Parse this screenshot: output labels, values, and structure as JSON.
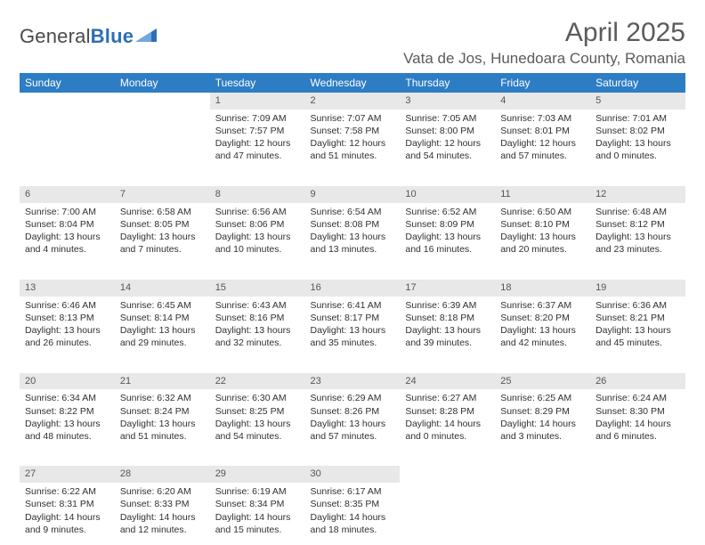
{
  "logo": {
    "word1": "General",
    "word2": "Blue"
  },
  "title": "April 2025",
  "location": "Vata de Jos, Hunedoara County, Romania",
  "colors": {
    "header_bg": "#2d7dc4",
    "header_fg": "#ffffff",
    "daynum_bg": "#e8e8e8",
    "daynum_fg": "#555555",
    "text": "#303030",
    "title_color": "#5b5b5b",
    "logo_blue": "#2d6fb5"
  },
  "day_names": [
    "Sunday",
    "Monday",
    "Tuesday",
    "Wednesday",
    "Thursday",
    "Friday",
    "Saturday"
  ],
  "weeks": [
    [
      {
        "n": "",
        "sr": "",
        "ss": "",
        "dl": ""
      },
      {
        "n": "",
        "sr": "",
        "ss": "",
        "dl": ""
      },
      {
        "n": "1",
        "sr": "Sunrise: 7:09 AM",
        "ss": "Sunset: 7:57 PM",
        "dl": "Daylight: 12 hours and 47 minutes."
      },
      {
        "n": "2",
        "sr": "Sunrise: 7:07 AM",
        "ss": "Sunset: 7:58 PM",
        "dl": "Daylight: 12 hours and 51 minutes."
      },
      {
        "n": "3",
        "sr": "Sunrise: 7:05 AM",
        "ss": "Sunset: 8:00 PM",
        "dl": "Daylight: 12 hours and 54 minutes."
      },
      {
        "n": "4",
        "sr": "Sunrise: 7:03 AM",
        "ss": "Sunset: 8:01 PM",
        "dl": "Daylight: 12 hours and 57 minutes."
      },
      {
        "n": "5",
        "sr": "Sunrise: 7:01 AM",
        "ss": "Sunset: 8:02 PM",
        "dl": "Daylight: 13 hours and 0 minutes."
      }
    ],
    [
      {
        "n": "6",
        "sr": "Sunrise: 7:00 AM",
        "ss": "Sunset: 8:04 PM",
        "dl": "Daylight: 13 hours and 4 minutes."
      },
      {
        "n": "7",
        "sr": "Sunrise: 6:58 AM",
        "ss": "Sunset: 8:05 PM",
        "dl": "Daylight: 13 hours and 7 minutes."
      },
      {
        "n": "8",
        "sr": "Sunrise: 6:56 AM",
        "ss": "Sunset: 8:06 PM",
        "dl": "Daylight: 13 hours and 10 minutes."
      },
      {
        "n": "9",
        "sr": "Sunrise: 6:54 AM",
        "ss": "Sunset: 8:08 PM",
        "dl": "Daylight: 13 hours and 13 minutes."
      },
      {
        "n": "10",
        "sr": "Sunrise: 6:52 AM",
        "ss": "Sunset: 8:09 PM",
        "dl": "Daylight: 13 hours and 16 minutes."
      },
      {
        "n": "11",
        "sr": "Sunrise: 6:50 AM",
        "ss": "Sunset: 8:10 PM",
        "dl": "Daylight: 13 hours and 20 minutes."
      },
      {
        "n": "12",
        "sr": "Sunrise: 6:48 AM",
        "ss": "Sunset: 8:12 PM",
        "dl": "Daylight: 13 hours and 23 minutes."
      }
    ],
    [
      {
        "n": "13",
        "sr": "Sunrise: 6:46 AM",
        "ss": "Sunset: 8:13 PM",
        "dl": "Daylight: 13 hours and 26 minutes."
      },
      {
        "n": "14",
        "sr": "Sunrise: 6:45 AM",
        "ss": "Sunset: 8:14 PM",
        "dl": "Daylight: 13 hours and 29 minutes."
      },
      {
        "n": "15",
        "sr": "Sunrise: 6:43 AM",
        "ss": "Sunset: 8:16 PM",
        "dl": "Daylight: 13 hours and 32 minutes."
      },
      {
        "n": "16",
        "sr": "Sunrise: 6:41 AM",
        "ss": "Sunset: 8:17 PM",
        "dl": "Daylight: 13 hours and 35 minutes."
      },
      {
        "n": "17",
        "sr": "Sunrise: 6:39 AM",
        "ss": "Sunset: 8:18 PM",
        "dl": "Daylight: 13 hours and 39 minutes."
      },
      {
        "n": "18",
        "sr": "Sunrise: 6:37 AM",
        "ss": "Sunset: 8:20 PM",
        "dl": "Daylight: 13 hours and 42 minutes."
      },
      {
        "n": "19",
        "sr": "Sunrise: 6:36 AM",
        "ss": "Sunset: 8:21 PM",
        "dl": "Daylight: 13 hours and 45 minutes."
      }
    ],
    [
      {
        "n": "20",
        "sr": "Sunrise: 6:34 AM",
        "ss": "Sunset: 8:22 PM",
        "dl": "Daylight: 13 hours and 48 minutes."
      },
      {
        "n": "21",
        "sr": "Sunrise: 6:32 AM",
        "ss": "Sunset: 8:24 PM",
        "dl": "Daylight: 13 hours and 51 minutes."
      },
      {
        "n": "22",
        "sr": "Sunrise: 6:30 AM",
        "ss": "Sunset: 8:25 PM",
        "dl": "Daylight: 13 hours and 54 minutes."
      },
      {
        "n": "23",
        "sr": "Sunrise: 6:29 AM",
        "ss": "Sunset: 8:26 PM",
        "dl": "Daylight: 13 hours and 57 minutes."
      },
      {
        "n": "24",
        "sr": "Sunrise: 6:27 AM",
        "ss": "Sunset: 8:28 PM",
        "dl": "Daylight: 14 hours and 0 minutes."
      },
      {
        "n": "25",
        "sr": "Sunrise: 6:25 AM",
        "ss": "Sunset: 8:29 PM",
        "dl": "Daylight: 14 hours and 3 minutes."
      },
      {
        "n": "26",
        "sr": "Sunrise: 6:24 AM",
        "ss": "Sunset: 8:30 PM",
        "dl": "Daylight: 14 hours and 6 minutes."
      }
    ],
    [
      {
        "n": "27",
        "sr": "Sunrise: 6:22 AM",
        "ss": "Sunset: 8:31 PM",
        "dl": "Daylight: 14 hours and 9 minutes."
      },
      {
        "n": "28",
        "sr": "Sunrise: 6:20 AM",
        "ss": "Sunset: 8:33 PM",
        "dl": "Daylight: 14 hours and 12 minutes."
      },
      {
        "n": "29",
        "sr": "Sunrise: 6:19 AM",
        "ss": "Sunset: 8:34 PM",
        "dl": "Daylight: 14 hours and 15 minutes."
      },
      {
        "n": "30",
        "sr": "Sunrise: 6:17 AM",
        "ss": "Sunset: 8:35 PM",
        "dl": "Daylight: 14 hours and 18 minutes."
      },
      {
        "n": "",
        "sr": "",
        "ss": "",
        "dl": ""
      },
      {
        "n": "",
        "sr": "",
        "ss": "",
        "dl": ""
      },
      {
        "n": "",
        "sr": "",
        "ss": "",
        "dl": ""
      }
    ]
  ]
}
